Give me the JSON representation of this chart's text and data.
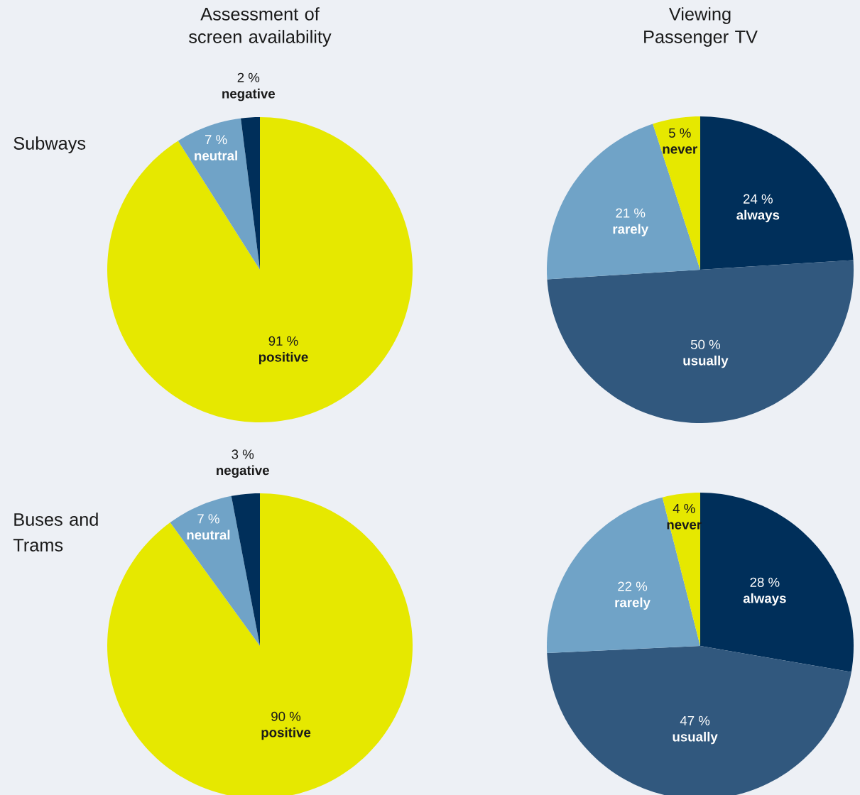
{
  "chart_data": [
    {
      "type": "pie",
      "title": "Assessment of screen availability",
      "annotations": [
        "Subways"
      ],
      "categories": [
        "positive",
        "neutral",
        "negative"
      ],
      "values": [
        91,
        7,
        2
      ],
      "colors": [
        "#e6e800",
        "#70a3c7",
        "#002f5a"
      ],
      "value_labels": [
        "91 %",
        "7 %",
        "2 %"
      ]
    },
    {
      "type": "pie",
      "title": "Viewing Passenger TV",
      "categories": [
        "always",
        "usually",
        "rarely",
        "never"
      ],
      "values": [
        24,
        50,
        21,
        5
      ],
      "colors": [
        "#002f5a",
        "#31587e",
        "#70a3c7",
        "#e6e800"
      ],
      "value_labels": [
        "24 %",
        "50 %",
        "21 %",
        "5 %"
      ]
    },
    {
      "type": "pie",
      "annotations": [
        "Buses and Trams"
      ],
      "categories": [
        "positive",
        "neutral",
        "negative"
      ],
      "values": [
        90,
        7,
        3
      ],
      "colors": [
        "#e6e800",
        "#70a3c7",
        "#002f5a"
      ],
      "value_labels": [
        "90 %",
        "7 %",
        "3 %"
      ]
    },
    {
      "type": "pie",
      "categories": [
        "always",
        "usually",
        "rarely",
        "never"
      ],
      "values": [
        28,
        47,
        22,
        4
      ],
      "colors": [
        "#002f5a",
        "#31587e",
        "#70a3c7",
        "#e6e800"
      ],
      "value_labels": [
        "28 %",
        "47 %",
        "22 %",
        "4 %"
      ]
    }
  ]
}
